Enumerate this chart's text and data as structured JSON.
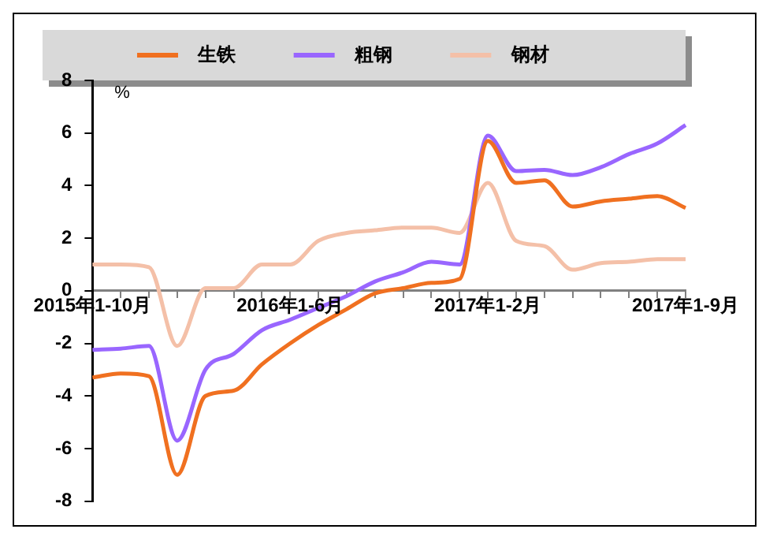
{
  "chart_data": {
    "type": "line",
    "ylabel": "%",
    "categories": [
      "2015年1-10月",
      null,
      null,
      null,
      null,
      null,
      null,
      "2016年1-6月",
      null,
      null,
      null,
      null,
      null,
      null,
      "2017年1-2月",
      null,
      null,
      null,
      null,
      null,
      null,
      "2017年1-9月"
    ],
    "series": [
      {
        "name": "生铁",
        "color": "#f07020",
        "values": [
          -3.3,
          -3.15,
          -3.25,
          -7.0,
          -4.0,
          -3.8,
          -2.8,
          -2.0,
          -1.3,
          -0.7,
          -0.1,
          0.1,
          0.3,
          0.45,
          5.7,
          4.1,
          4.2,
          3.2,
          3.4,
          3.5,
          3.6,
          3.15
        ]
      },
      {
        "name": "粗钢",
        "color": "#9966ff",
        "values": [
          -2.25,
          -2.2,
          -2.1,
          -5.7,
          -3.0,
          -2.4,
          -1.5,
          -1.1,
          -0.65,
          -0.2,
          0.35,
          0.7,
          1.1,
          1.0,
          5.9,
          4.55,
          4.6,
          4.4,
          4.7,
          5.2,
          5.6,
          6.3
        ]
      },
      {
        "name": "钢材",
        "color": "#f4c0a8",
        "values": [
          1.0,
          1.0,
          0.9,
          -2.1,
          0.1,
          0.1,
          1.0,
          1.0,
          1.9,
          2.2,
          2.3,
          2.4,
          2.4,
          2.2,
          4.1,
          1.9,
          1.7,
          0.8,
          1.05,
          1.1,
          1.2,
          1.2
        ]
      }
    ],
    "ylim": [
      -8,
      8
    ],
    "yticks": [
      -8,
      -6,
      -4,
      -2,
      0,
      2,
      4,
      6,
      8
    ],
    "grid": false,
    "legend": "top",
    "marker": "none",
    "line_style": "solid"
  }
}
